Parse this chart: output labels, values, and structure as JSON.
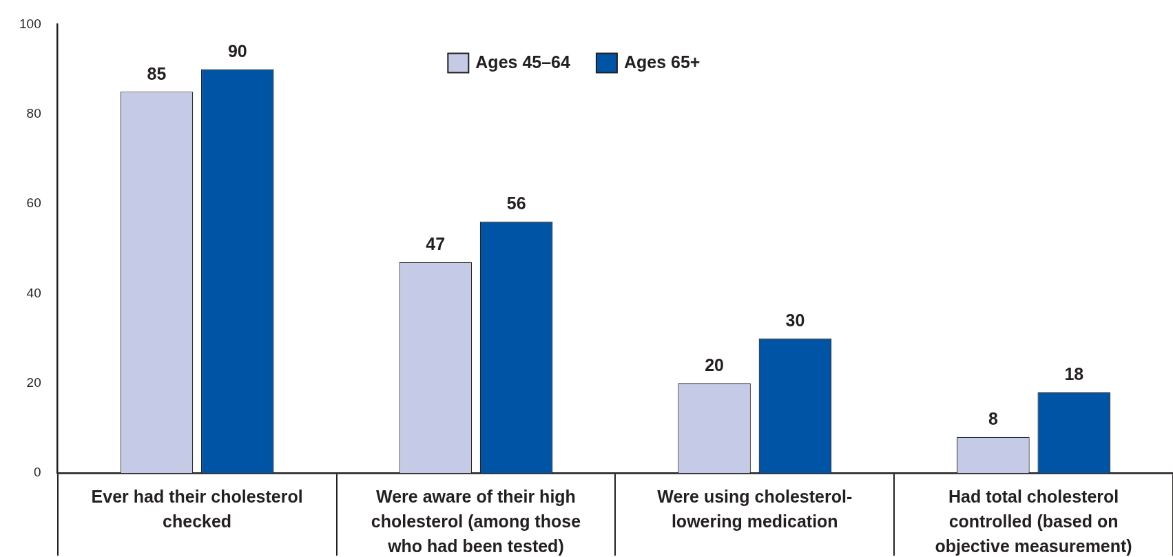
{
  "chart_data": {
    "type": "bar",
    "categories": [
      "Ever had their cholesterol checked",
      "Were aware of their high cholesterol (among those who had been tested)",
      "Were using cholesterol-lowering medication",
      "Had total cholesterol controlled (based on objective measurement)"
    ],
    "series": [
      {
        "name": "Ages 45–64",
        "color": "#c5cbe6",
        "values": [
          85,
          47,
          20,
          8
        ]
      },
      {
        "name": "Ages 65+",
        "color": "#0054a6",
        "values": [
          90,
          56,
          30,
          18
        ]
      }
    ],
    "ylim": [
      0,
      100
    ],
    "yticks": [
      0,
      20,
      40,
      60,
      80,
      100
    ],
    "grid": false,
    "legend": "top",
    "data_labels": true
  }
}
